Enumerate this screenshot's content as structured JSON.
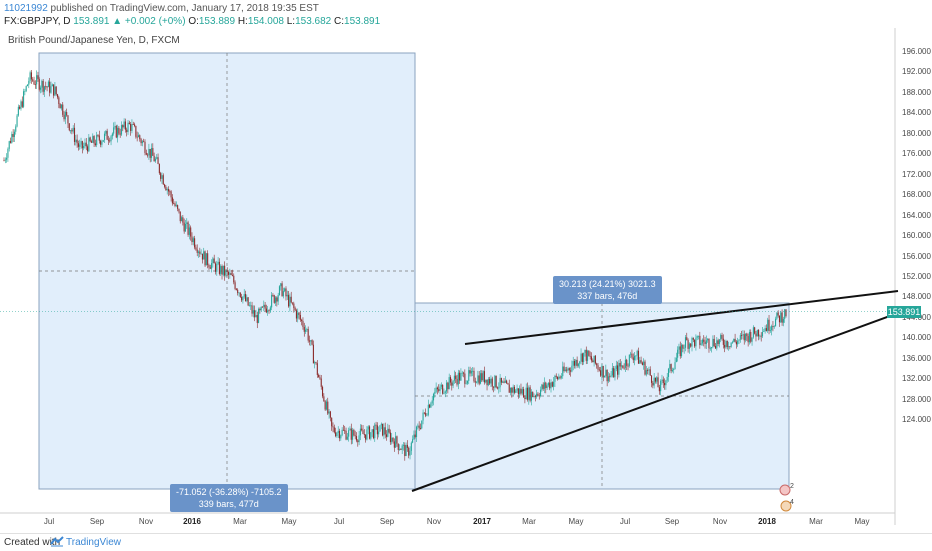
{
  "header": {
    "user_id": "11021992",
    "published": "published on TradingView.com, January 17, 2018 19:35 EST",
    "symbol": "FX:GBPJPY, D",
    "last": "153.891",
    "change_arrow": "▲",
    "change": "+0.002 (+0%)",
    "open_label": "O:",
    "open": "153.889",
    "high_label": "H:",
    "high": "154.008",
    "low_label": "L:",
    "low": "153.682",
    "close_label": "C:",
    "close": "153.891"
  },
  "instrument_label": "British Pound/Japanese Yen, D, FXCM",
  "price_axis": {
    "labels": [
      "196.000",
      "192.000",
      "188.000",
      "184.000",
      "180.000",
      "176.000",
      "172.000",
      "168.000",
      "164.000",
      "160.000",
      "156.000",
      "152.000",
      "148.000",
      "144.000",
      "140.000",
      "136.000",
      "132.000",
      "128.000",
      "124.000"
    ],
    "current_price_tag": "153.891"
  },
  "time_axis": {
    "labels": [
      "Jul",
      "Sep",
      "Nov",
      "2016",
      "Mar",
      "May",
      "Jul",
      "Sep",
      "Nov",
      "2017",
      "Mar",
      "May",
      "Jul",
      "Sep",
      "Nov",
      "2018",
      "Mar",
      "May"
    ]
  },
  "measure_boxes": {
    "drop": {
      "line1": "-71.052 (-36.28%) -7105.2",
      "line2": "339 bars, 477d"
    },
    "rise": {
      "line1": "30.213 (24.21%) 3021.3",
      "line2": "337 bars, 476d"
    }
  },
  "footer": {
    "created_with": "Created with",
    "brand": "TradingView"
  },
  "colors": {
    "up_candle": "#26a69a",
    "down_candle": "#8b2a2a",
    "measure_fill": "#dcebfa",
    "accent": "#3b87d4"
  },
  "chart_data": {
    "type": "candlestick",
    "ylim": [
      122.5,
      198.5
    ],
    "series": [
      {
        "name": "GBPJPY",
        "x": [
          "2015-06",
          "2015-07",
          "2015-08",
          "2015-09",
          "2015-10",
          "2015-11",
          "2015-12",
          "2016-01",
          "2016-02",
          "2016-03",
          "2016-04",
          "2016-05",
          "2016-06",
          "2016-07",
          "2016-08",
          "2016-09",
          "2016-10",
          "2016-11",
          "2016-12",
          "2017-01",
          "2017-02",
          "2017-03",
          "2017-04",
          "2017-05",
          "2017-06",
          "2017-07",
          "2017-08",
          "2017-09",
          "2017-10",
          "2017-11",
          "2017-12",
          "2018-01"
        ],
        "values": [
          180,
          194,
          192,
          182,
          184,
          186,
          180,
          170,
          163,
          160,
          153,
          158,
          151,
          134,
          133,
          134,
          130,
          140,
          143,
          143,
          141,
          140,
          143,
          147,
          143,
          147,
          141,
          149,
          149,
          149,
          151,
          153.9
        ]
      }
    ]
  }
}
